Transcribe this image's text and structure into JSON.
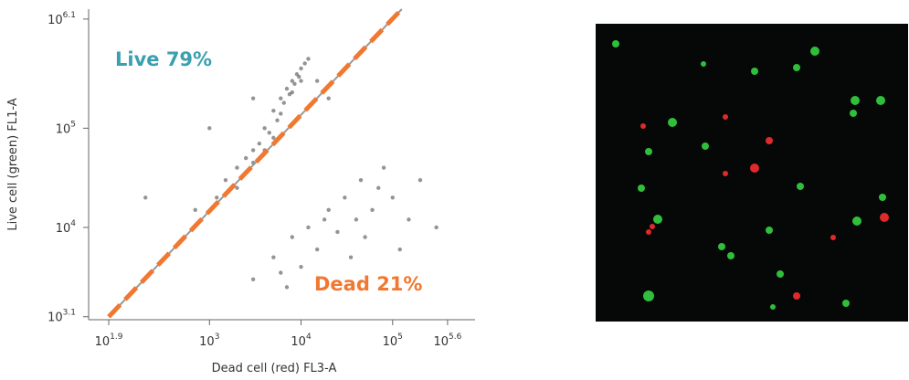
{
  "chart_data": {
    "type": "scatter",
    "x_label": "Dead cell (red) FL3-A",
    "y_label": "Live cell (green) FL1-A",
    "log_x": true,
    "log_y": true,
    "xlim": [
      47.9,
      794328
    ],
    "ylim": [
      1175,
      1584893
    ],
    "xticks": [
      {
        "value": 79.43,
        "label": "10",
        "exponent": "1.9"
      },
      {
        "value": 1000,
        "label": "10",
        "exponent": "3"
      },
      {
        "value": 10000,
        "label": "10",
        "exponent": "4"
      },
      {
        "value": 100000,
        "label": "10",
        "exponent": "5"
      },
      {
        "value": 398107,
        "label": "10",
        "exponent": "5.6"
      }
    ],
    "yticks": [
      {
        "value": 1259,
        "label": "10",
        "exponent": "3.1"
      },
      {
        "value": 10000,
        "label": "10",
        "exponent": "4"
      },
      {
        "value": 100000,
        "label": "10",
        "exponent": "5"
      },
      {
        "value": 1258925,
        "label": "10",
        "exponent": "6.1"
      }
    ],
    "color": "#3c3c3c",
    "x": [
      2000,
      3000,
      4000,
      5000,
      6000,
      7000,
      8000,
      9000,
      10000,
      6500,
      5500,
      4500,
      3500,
      2500,
      1500,
      1200,
      7500,
      8500,
      11000,
      12000,
      9500,
      4000,
      3000,
      6000,
      8000,
      5000,
      2000,
      10000,
      700,
      15000,
      20000,
      1000,
      200,
      3000,
      5000,
      8000,
      12000,
      20000,
      30000,
      15000,
      25000,
      40000,
      60000,
      10000,
      6000,
      3000,
      50000,
      100000,
      150000,
      200000,
      80000,
      35000,
      18000,
      70000,
      300000,
      120000,
      7000,
      45000
    ],
    "y": [
      40000,
      60000,
      100000,
      150000,
      200000,
      250000,
      300000,
      350000,
      400000,
      180000,
      120000,
      90000,
      70000,
      50000,
      30000,
      20000,
      220000,
      280000,
      450000,
      500000,
      330000,
      60000,
      45000,
      140000,
      230000,
      80000,
      25000,
      300000,
      15000,
      300000,
      200000,
      100000,
      20000,
      200000,
      5000,
      8000,
      10000,
      15000,
      20000,
      6000,
      9000,
      12000,
      15000,
      4000,
      3500,
      3000,
      8000,
      20000,
      12000,
      30000,
      40000,
      5000,
      12000,
      25000,
      10000,
      6000,
      2500,
      30000
    ],
    "gate_line": {
      "x": [
        79.43,
        125893
      ],
      "y": [
        1259,
        1584893
      ],
      "color": "#f07830"
    },
    "annotations": [
      {
        "text": "Live 79%",
        "color": "#3aa0b0"
      },
      {
        "text": "Dead 21%",
        "color": "#f07830"
      }
    ]
  }
}
